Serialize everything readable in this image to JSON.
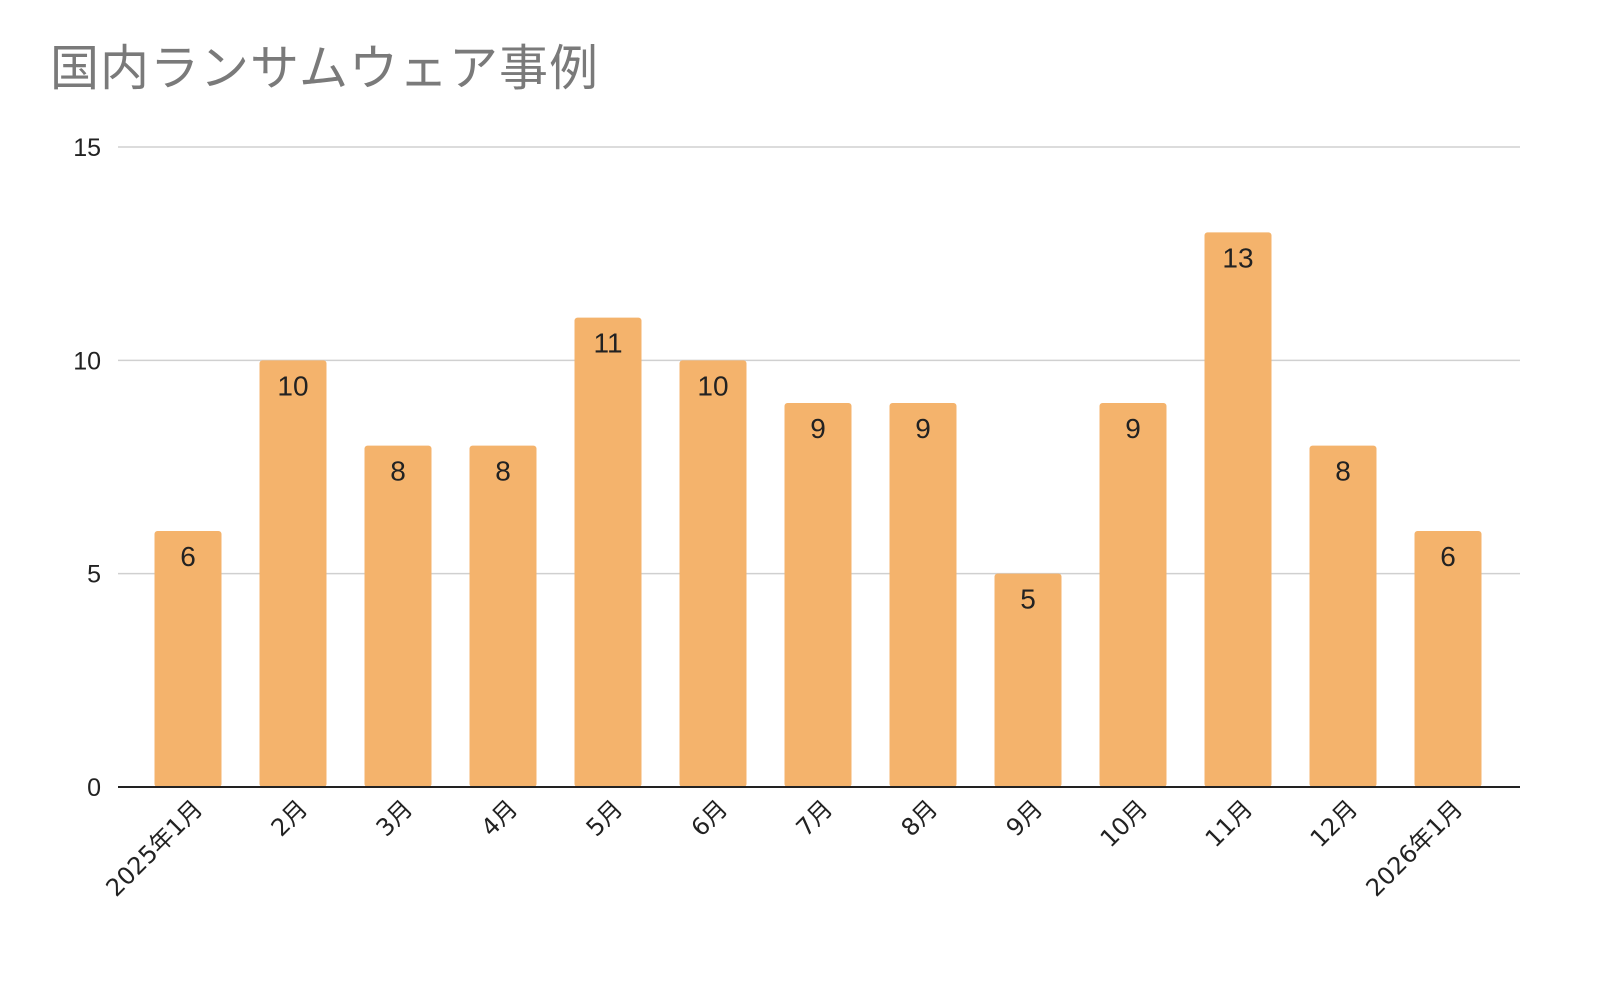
{
  "chart_data": {
    "type": "bar",
    "title": "国内ランサムウェア事例",
    "categories": [
      "2025年1月",
      "2月",
      "3月",
      "4月",
      "5月",
      "6月",
      "7月",
      "8月",
      "9月",
      "10月",
      "11月",
      "12月",
      "2026年1月"
    ],
    "values": [
      6,
      10,
      8,
      8,
      11,
      10,
      9,
      9,
      5,
      9,
      13,
      8,
      6
    ],
    "data_labels": [
      "6",
      "10",
      "8",
      "8",
      "11",
      "10",
      "9",
      "9",
      "5",
      "9",
      "13",
      "8",
      "6"
    ],
    "yticks": [
      0,
      5,
      10,
      15
    ],
    "ytick_labels": [
      "0",
      "5",
      "10",
      "15"
    ],
    "ylim": [
      0,
      15
    ],
    "xlabel": "",
    "ylabel": "",
    "grid": true,
    "legend": "none",
    "bar_color": "#f4b36c",
    "grid_color": "#d0d0d0",
    "axis_color": "#222222",
    "title_color": "#7a7a7a"
  }
}
